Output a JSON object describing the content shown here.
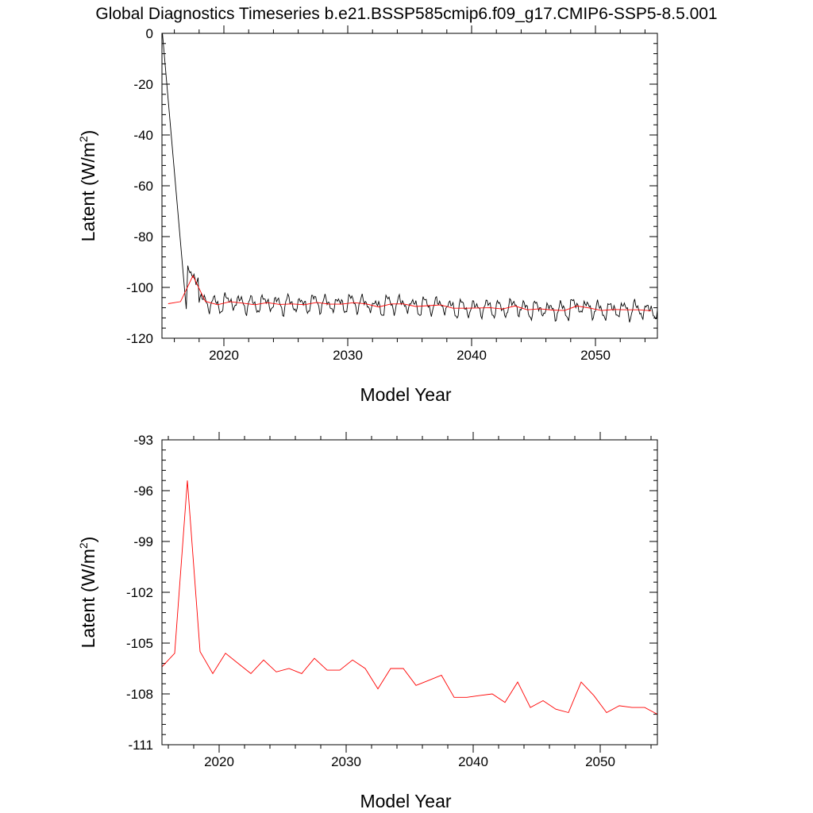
{
  "title": "Global Diagnostics Timeseries b.e21.BSSP585cmip6.f09_g17.CMIP6-SSP5-8.5.001",
  "colors": {
    "monthly": "#000000",
    "annual": "#ff0000"
  },
  "chart_data": [
    {
      "type": "line",
      "xlabel": "Model Year",
      "ylabel": "Latent (W/m",
      "ylabel_sup": "2",
      "ylabel_close": ")",
      "xlim": [
        2015,
        2055
      ],
      "ylim": [
        -120,
        0
      ],
      "xticks": [
        2020,
        2030,
        2040,
        2050
      ],
      "xtick_labels": [
        "2020",
        "2030",
        "2040",
        "2050"
      ],
      "yticks": [
        0,
        -20,
        -40,
        -60,
        -80,
        -100,
        -120
      ],
      "ytick_labels": [
        "0",
        "-20",
        "-40",
        "-60",
        "-80",
        "-100",
        "-120"
      ],
      "series": [
        {
          "key": "monthly",
          "color": "#000000",
          "x": [
            2015.04,
            2016.96
          ],
          "y": [
            0,
            -108.5
          ],
          "noisy_start": 2017.0,
          "noisy_end": 2055.0,
          "noisy_samples_per_year": 12
        },
        {
          "key": "annual",
          "color": "#ff0000",
          "x": [
            2015.5,
            2016.5,
            2017.5,
            2018.5,
            2019.5,
            2020.5,
            2021.5,
            2022.5,
            2023.5,
            2024.5,
            2025.5,
            2026.5,
            2027.5,
            2028.5,
            2029.5,
            2030.5,
            2031.5,
            2032.5,
            2033.5,
            2034.5,
            2035.5,
            2036.5,
            2037.5,
            2038.5,
            2039.5,
            2040.5,
            2041.5,
            2042.5,
            2043.5,
            2044.5,
            2045.5,
            2046.5,
            2047.5,
            2048.5,
            2049.5,
            2050.5,
            2051.5,
            2052.5,
            2053.5,
            2054.5
          ],
          "y": [
            -106.4,
            -105.6,
            -95.4,
            -105.5,
            -106.8,
            -105.6,
            -106.2,
            -106.8,
            -106.0,
            -106.7,
            -106.5,
            -106.8,
            -105.9,
            -106.6,
            -106.6,
            -106.0,
            -106.5,
            -107.7,
            -106.5,
            -106.5,
            -107.5,
            -107.2,
            -106.9,
            -108.2,
            -108.2,
            -108.1,
            -108.0,
            -108.5,
            -107.3,
            -108.8,
            -108.4,
            -108.9,
            -109.1,
            -107.3,
            -108.1,
            -109.1,
            -108.7,
            -108.8,
            -108.8,
            -109.2
          ]
        }
      ]
    },
    {
      "type": "line",
      "xlabel": "Model Year",
      "ylabel": "Latent (W/m",
      "ylabel_sup": "2",
      "ylabel_close": ")",
      "xlim": [
        2015.5,
        2054.5
      ],
      "ylim": [
        -111,
        -93
      ],
      "xticks": [
        2020,
        2030,
        2040,
        2050
      ],
      "xtick_labels": [
        "2020",
        "2030",
        "2040",
        "2050"
      ],
      "yticks": [
        -93,
        -96,
        -99,
        -102,
        -105,
        -108,
        -111
      ],
      "ytick_labels": [
        "-93",
        "-96",
        "-99",
        "-102",
        "-105",
        "-108",
        "-111"
      ],
      "series": [
        {
          "key": "annual",
          "color": "#ff0000",
          "x": [
            2015.5,
            2016.5,
            2017.5,
            2018.5,
            2019.5,
            2020.5,
            2021.5,
            2022.5,
            2023.5,
            2024.5,
            2025.5,
            2026.5,
            2027.5,
            2028.5,
            2029.5,
            2030.5,
            2031.5,
            2032.5,
            2033.5,
            2034.5,
            2035.5,
            2036.5,
            2037.5,
            2038.5,
            2039.5,
            2040.5,
            2041.5,
            2042.5,
            2043.5,
            2044.5,
            2045.5,
            2046.5,
            2047.5,
            2048.5,
            2049.5,
            2050.5,
            2051.5,
            2052.5,
            2053.5,
            2054.5
          ],
          "y": [
            -106.4,
            -105.6,
            -95.4,
            -105.5,
            -106.8,
            -105.6,
            -106.2,
            -106.8,
            -106.0,
            -106.7,
            -106.5,
            -106.8,
            -105.9,
            -106.6,
            -106.6,
            -106.0,
            -106.5,
            -107.7,
            -106.5,
            -106.5,
            -107.5,
            -107.2,
            -106.9,
            -108.2,
            -108.2,
            -108.1,
            -108.0,
            -108.5,
            -107.3,
            -108.8,
            -108.4,
            -108.9,
            -109.1,
            -107.3,
            -108.1,
            -109.1,
            -108.7,
            -108.8,
            -108.8,
            -109.2
          ]
        }
      ]
    }
  ]
}
